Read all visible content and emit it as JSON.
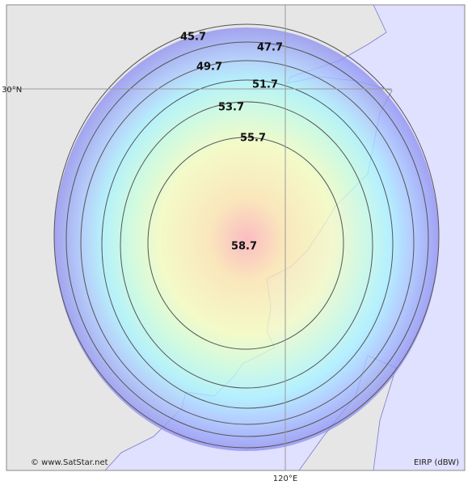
{
  "map": {
    "contour_labels": [
      "45.7",
      "47.7",
      "49.7",
      "51.7",
      "53.7",
      "55.7"
    ],
    "center_label": "58.7",
    "lat_label": "30°N",
    "lon_label": "120°E",
    "credit": "© www.SatStar.net",
    "unit_label": "EIRP (dBW)"
  }
}
